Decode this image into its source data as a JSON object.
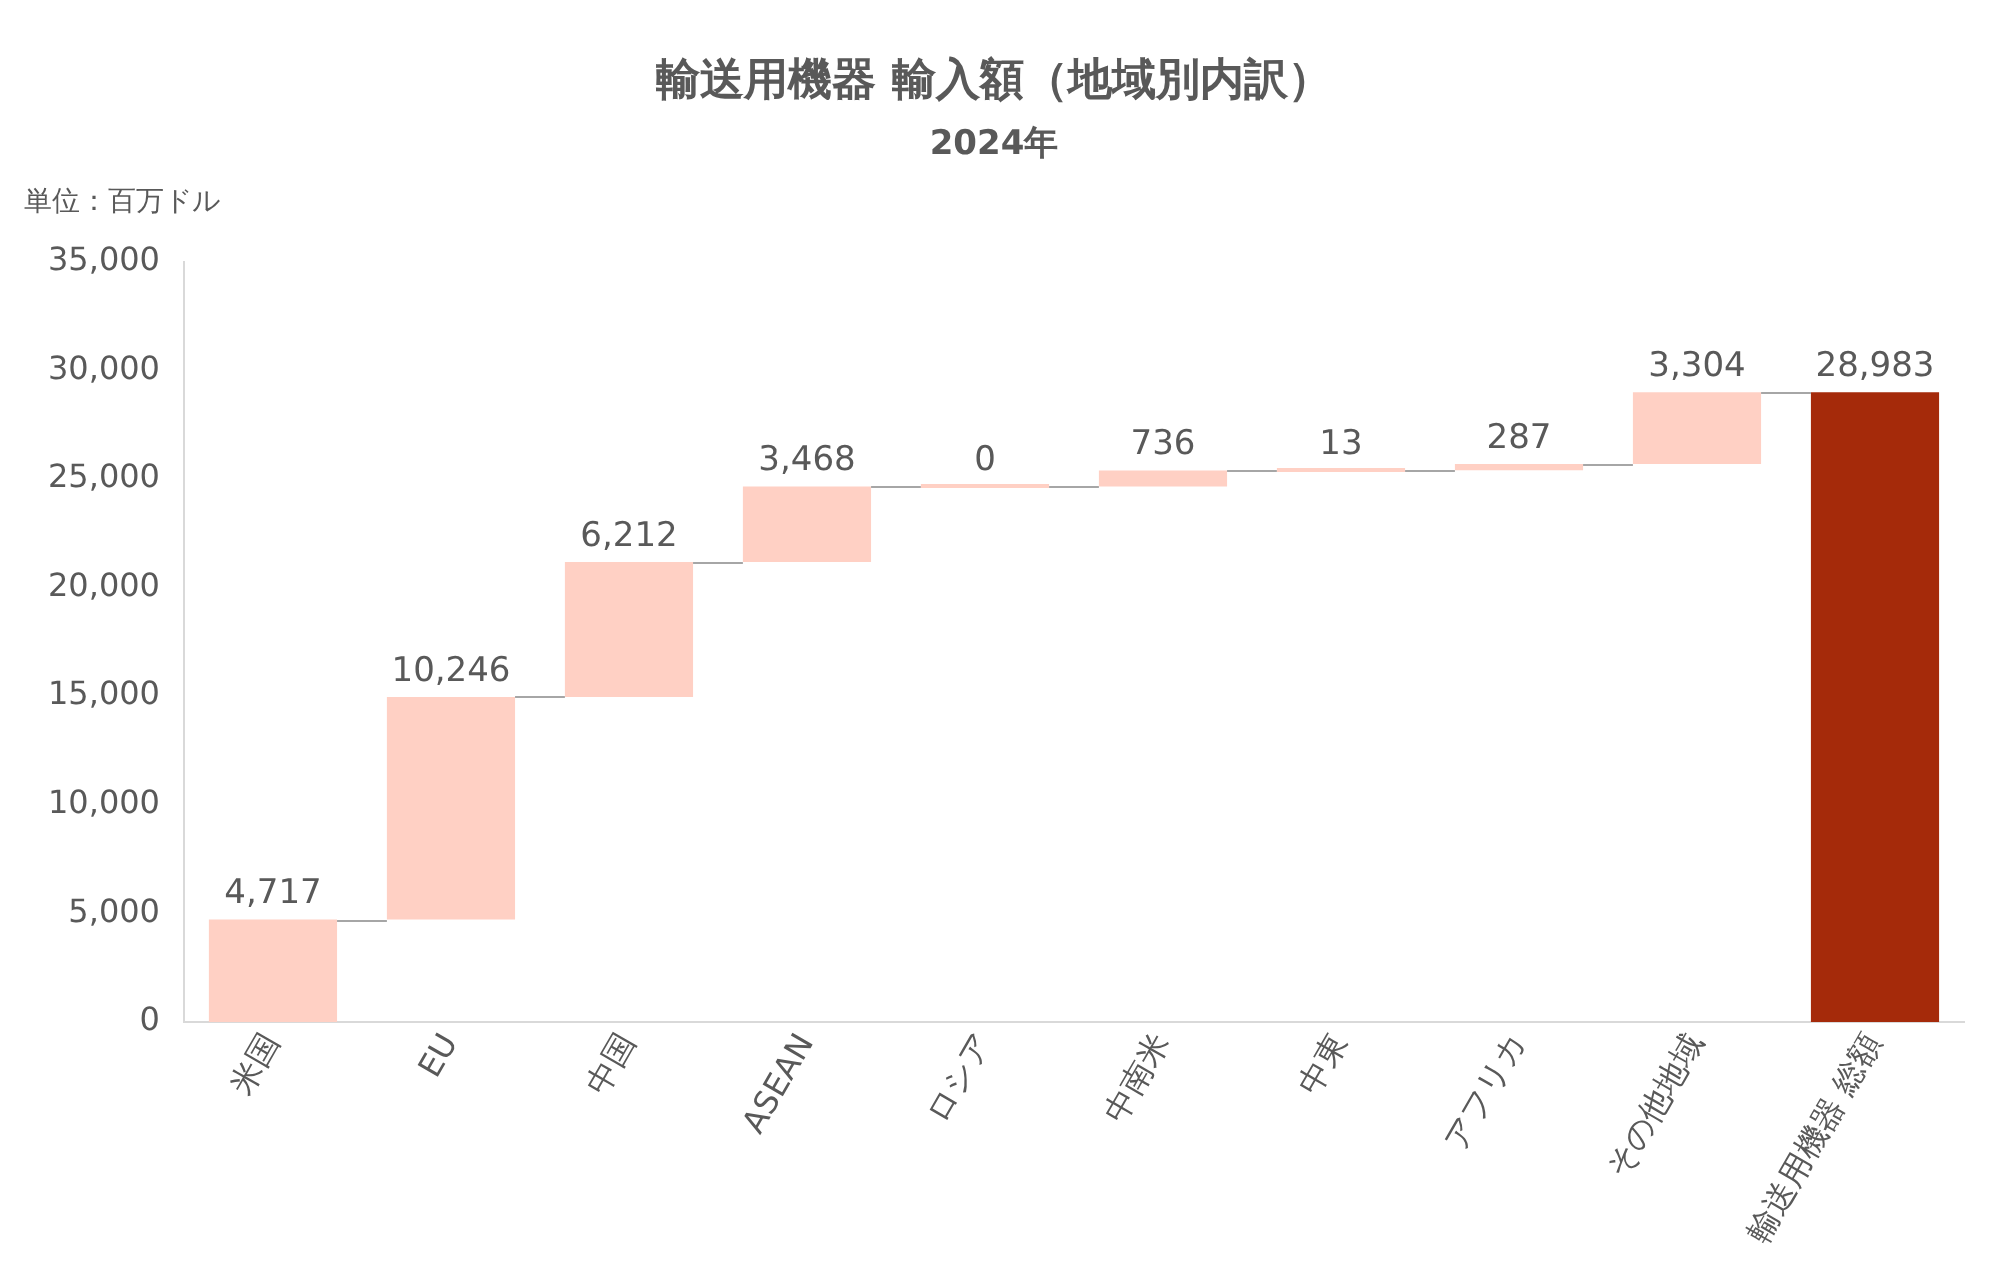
{
  "chart_data": {
    "type": "bar",
    "title": "輸送用機器 輸入額（地域別内訳）",
    "subtitle": "2024年",
    "ylabel": "単位：百万ドル",
    "categories": [
      "米国",
      "EU",
      "中国",
      "ASEAN",
      "ロシア",
      "中南米",
      "中東",
      "アフリカ",
      "その他地域",
      "輸送用機器 総額"
    ],
    "values": [
      4717,
      10246,
      6212,
      3468,
      0,
      736,
      13,
      287,
      3304,
      28983
    ],
    "base": [
      0,
      4717,
      14963,
      21175,
      24643,
      24643,
      25379,
      25392,
      25679,
      0
    ],
    "colors": [
      "#ffd0c4",
      "#ffd0c4",
      "#ffd0c4",
      "#ffd0c4",
      "#ffd0c4",
      "#ffd0c4",
      "#ffd0c4",
      "#ffd0c4",
      "#ffd0c4",
      "#a52a0a"
    ],
    "value_labels": [
      "4,717",
      "10,246",
      "6,212",
      "3,468",
      "0",
      "736",
      "13",
      "287",
      "3,304",
      "28,983"
    ],
    "ylim": [
      0,
      35000
    ],
    "yticks": [
      {
        "value": 0,
        "label": "0"
      },
      {
        "value": 5000,
        "label": "5,000"
      },
      {
        "value": 10000,
        "label": "10,000"
      },
      {
        "value": 15000,
        "label": "15,000"
      },
      {
        "value": 20000,
        "label": "20,000"
      },
      {
        "value": 25000,
        "label": "25,000"
      },
      {
        "value": 30000,
        "label": "30,000"
      },
      {
        "value": 35000,
        "label": "35,000"
      }
    ],
    "grid": false,
    "legend": false
  }
}
